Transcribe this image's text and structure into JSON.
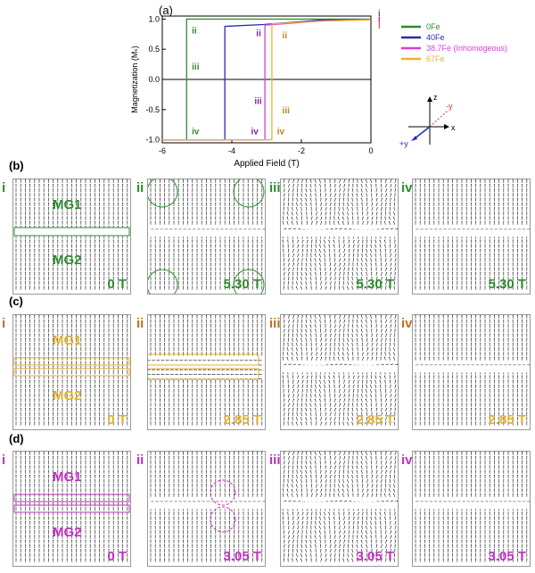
{
  "panel_labels": {
    "a": "(a)",
    "b": "(b)",
    "c": "(c)",
    "d": "(d)"
  },
  "chart_data": {
    "type": "line",
    "xlabel": "Applied Field (T)",
    "ylabel": "Magnetization (Mₛ)",
    "xlim": [
      -6,
      0
    ],
    "ylim": [
      -1.05,
      1.05
    ],
    "xticks": [
      "-6",
      "-4",
      "-2",
      "0"
    ],
    "yticks": [
      "-1.0",
      "-0.5",
      "0.0",
      "0.5",
      "1.0"
    ],
    "series": [
      {
        "name": "0Fe",
        "color": "#2e8b2e",
        "x": [
          0,
          -5.3,
          -5.3,
          -6
        ],
        "y": [
          1.0,
          1.0,
          -1.0,
          -1.0
        ]
      },
      {
        "name": "40Fe",
        "color": "#2b2bb0",
        "x": [
          0,
          -1.5,
          -2.2,
          -3.1,
          -4.2,
          -4.2,
          -6
        ],
        "y": [
          0.99,
          0.98,
          0.95,
          0.91,
          0.88,
          -1.0,
          -1.0
        ]
      },
      {
        "name": "38.7Fe (Inhomogeous)",
        "color": "#d63fd6",
        "x": [
          0,
          -1.4,
          -2.3,
          -3.05,
          -3.05,
          -6
        ],
        "y": [
          0.99,
          0.97,
          0.93,
          0.9,
          -1.0,
          -1.0
        ]
      },
      {
        "name": "67Fe",
        "color": "#f0b030",
        "x": [
          0,
          -1.2,
          -2.0,
          -2.85,
          -2.85,
          -6
        ],
        "y": [
          0.99,
          0.97,
          0.95,
          0.92,
          -1.0,
          -1.0
        ]
      }
    ],
    "annotations": [
      {
        "text": "i",
        "color": "#2e8b2e"
      },
      {
        "text": "i",
        "color": "#7a2aa0"
      },
      {
        "text": "i",
        "color": "#d63fd6"
      },
      {
        "text": "i",
        "color": "#c08020"
      },
      {
        "text": "ii",
        "color": "#2e8b2e"
      },
      {
        "text": "ii",
        "color": "#7a2aa0"
      },
      {
        "text": "ii",
        "color": "#c08020"
      },
      {
        "text": "iii",
        "color": "#2e8b2e"
      },
      {
        "text": "iii",
        "color": "#7a2aa0"
      },
      {
        "text": "iii",
        "color": "#c08020"
      },
      {
        "text": "iv",
        "color": "#2e8b2e"
      },
      {
        "text": "iv",
        "color": "#7a2aa0"
      },
      {
        "text": "iv",
        "color": "#c08020"
      }
    ],
    "legend_placement": "right"
  },
  "axes_glyph": {
    "z": "z",
    "x": "x",
    "neg_y": "-y",
    "pos_y": "+y"
  },
  "rows": {
    "b": {
      "color": "#2e8b2e",
      "panels": [
        {
          "tag": "i",
          "field": "0 T",
          "mg1": "MG1",
          "mg2": "MG2"
        },
        {
          "tag": "ii",
          "field": "5.30 T"
        },
        {
          "tag": "iii",
          "field": "5.30 T"
        },
        {
          "tag": "iv",
          "field": "5.30 T"
        }
      ]
    },
    "c": {
      "color": "#e0b030",
      "tagcolor": "#c07020",
      "panels": [
        {
          "tag": "i",
          "field": "0 T",
          "mg1": "MG1",
          "mg2": "MG2"
        },
        {
          "tag": "ii",
          "field": "2.85 T"
        },
        {
          "tag": "iii",
          "field": "2.85 T"
        },
        {
          "tag": "iv",
          "field": "2.85 T"
        }
      ]
    },
    "d": {
      "color": "#c030c0",
      "panels": [
        {
          "tag": "i",
          "field": "0 T",
          "mg1": "MG1",
          "mg2": "MG2"
        },
        {
          "tag": "ii",
          "field": "3.05 T"
        },
        {
          "tag": "iii",
          "field": "3.05 T"
        },
        {
          "tag": "iv",
          "field": "3.05 T"
        }
      ]
    }
  }
}
